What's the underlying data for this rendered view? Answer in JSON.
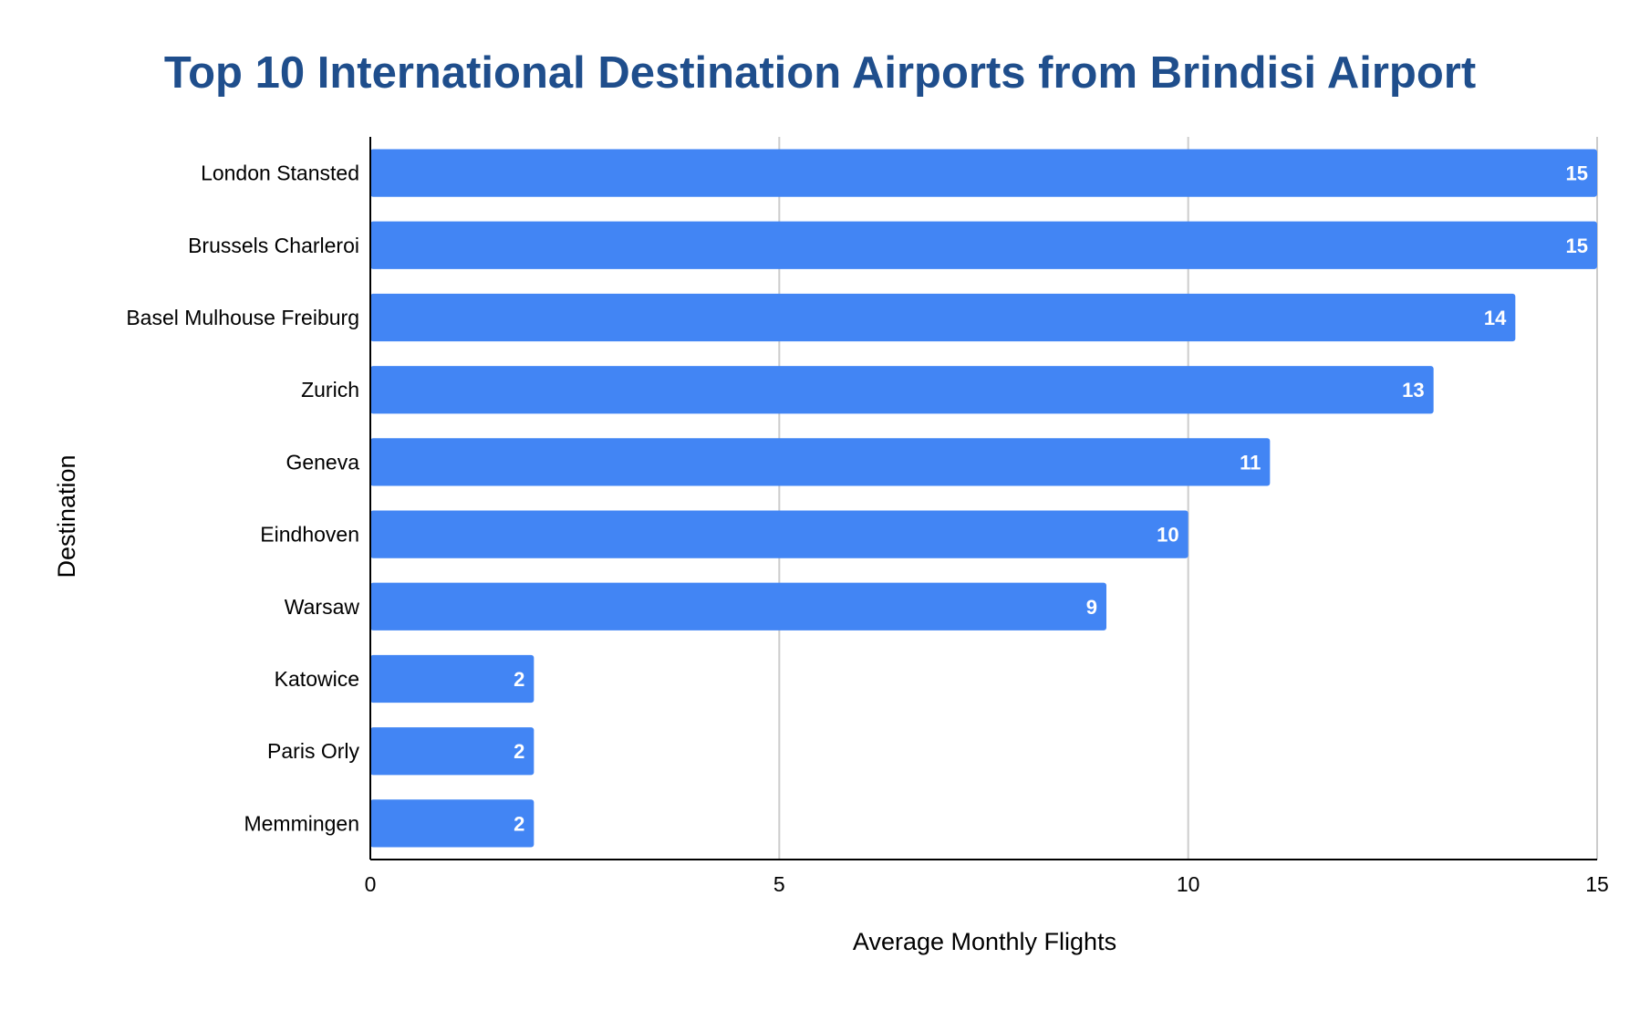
{
  "chart_data": {
    "type": "bar",
    "orientation": "horizontal",
    "title": "Top 10 International Destination Airports from Brindisi Airport",
    "xlabel": "Average Monthly Flights",
    "ylabel": "Destination",
    "categories": [
      "London Stansted",
      "Brussels Charleroi",
      "Basel Mulhouse Freiburg",
      "Zurich",
      "Geneva",
      "Eindhoven",
      "Warsaw",
      "Katowice",
      "Paris Orly",
      "Memmingen"
    ],
    "values": [
      15,
      15,
      14,
      13,
      11,
      10,
      9,
      2,
      2,
      2
    ],
    "xlim": [
      0,
      15
    ],
    "xticks": [
      0,
      5,
      10,
      15
    ],
    "grid": true,
    "legend": "none",
    "data_labels": true,
    "colors": {
      "bar": "#4285f4",
      "title": "#1f4e8c",
      "grid": "#cccccc",
      "axis": "#000000"
    }
  }
}
